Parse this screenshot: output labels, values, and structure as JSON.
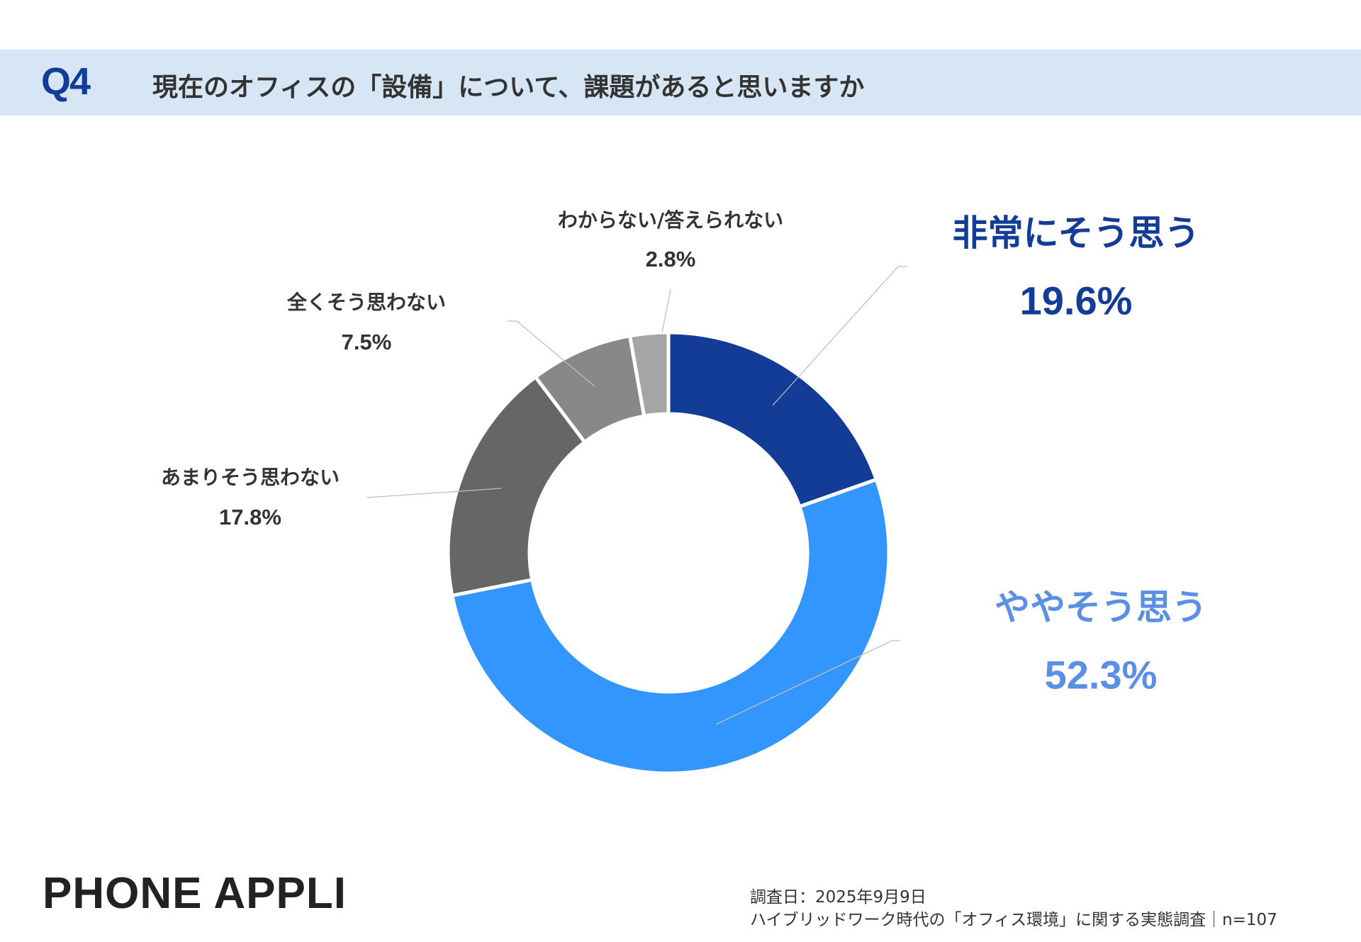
{
  "header": {
    "question_no": "Q4",
    "title": "現在のオフィスの「設備」について、課題があると思いますか"
  },
  "chart_data": {
    "type": "pie",
    "donut": true,
    "title": "現在のオフィスの「設備」について、課題があると思いますか",
    "categories": [
      "非常にそう思う",
      "ややそう思う",
      "あまりそう思わない",
      "全くそう思わない",
      "わからない/答えられない"
    ],
    "values": [
      19.6,
      52.3,
      17.8,
      7.5,
      2.8
    ],
    "value_labels": [
      "19.6%",
      "52.3%",
      "17.8%",
      "7.5%",
      "2.8%"
    ],
    "colors": [
      "#123c96",
      "#3396ff",
      "#666666",
      "#888888",
      "#a5a5a5"
    ],
    "label_colors": [
      "#123c96",
      "#5a8fe6",
      "#333333",
      "#333333",
      "#333333"
    ],
    "start": "12 o'clock, clockwise"
  },
  "brand": "PHONE  APPLI",
  "footer": {
    "date": "調査日：2025年9月9日",
    "survey": "ハイブリッドワーク時代の「オフィス環境」に関する実態調査｜n=107"
  }
}
